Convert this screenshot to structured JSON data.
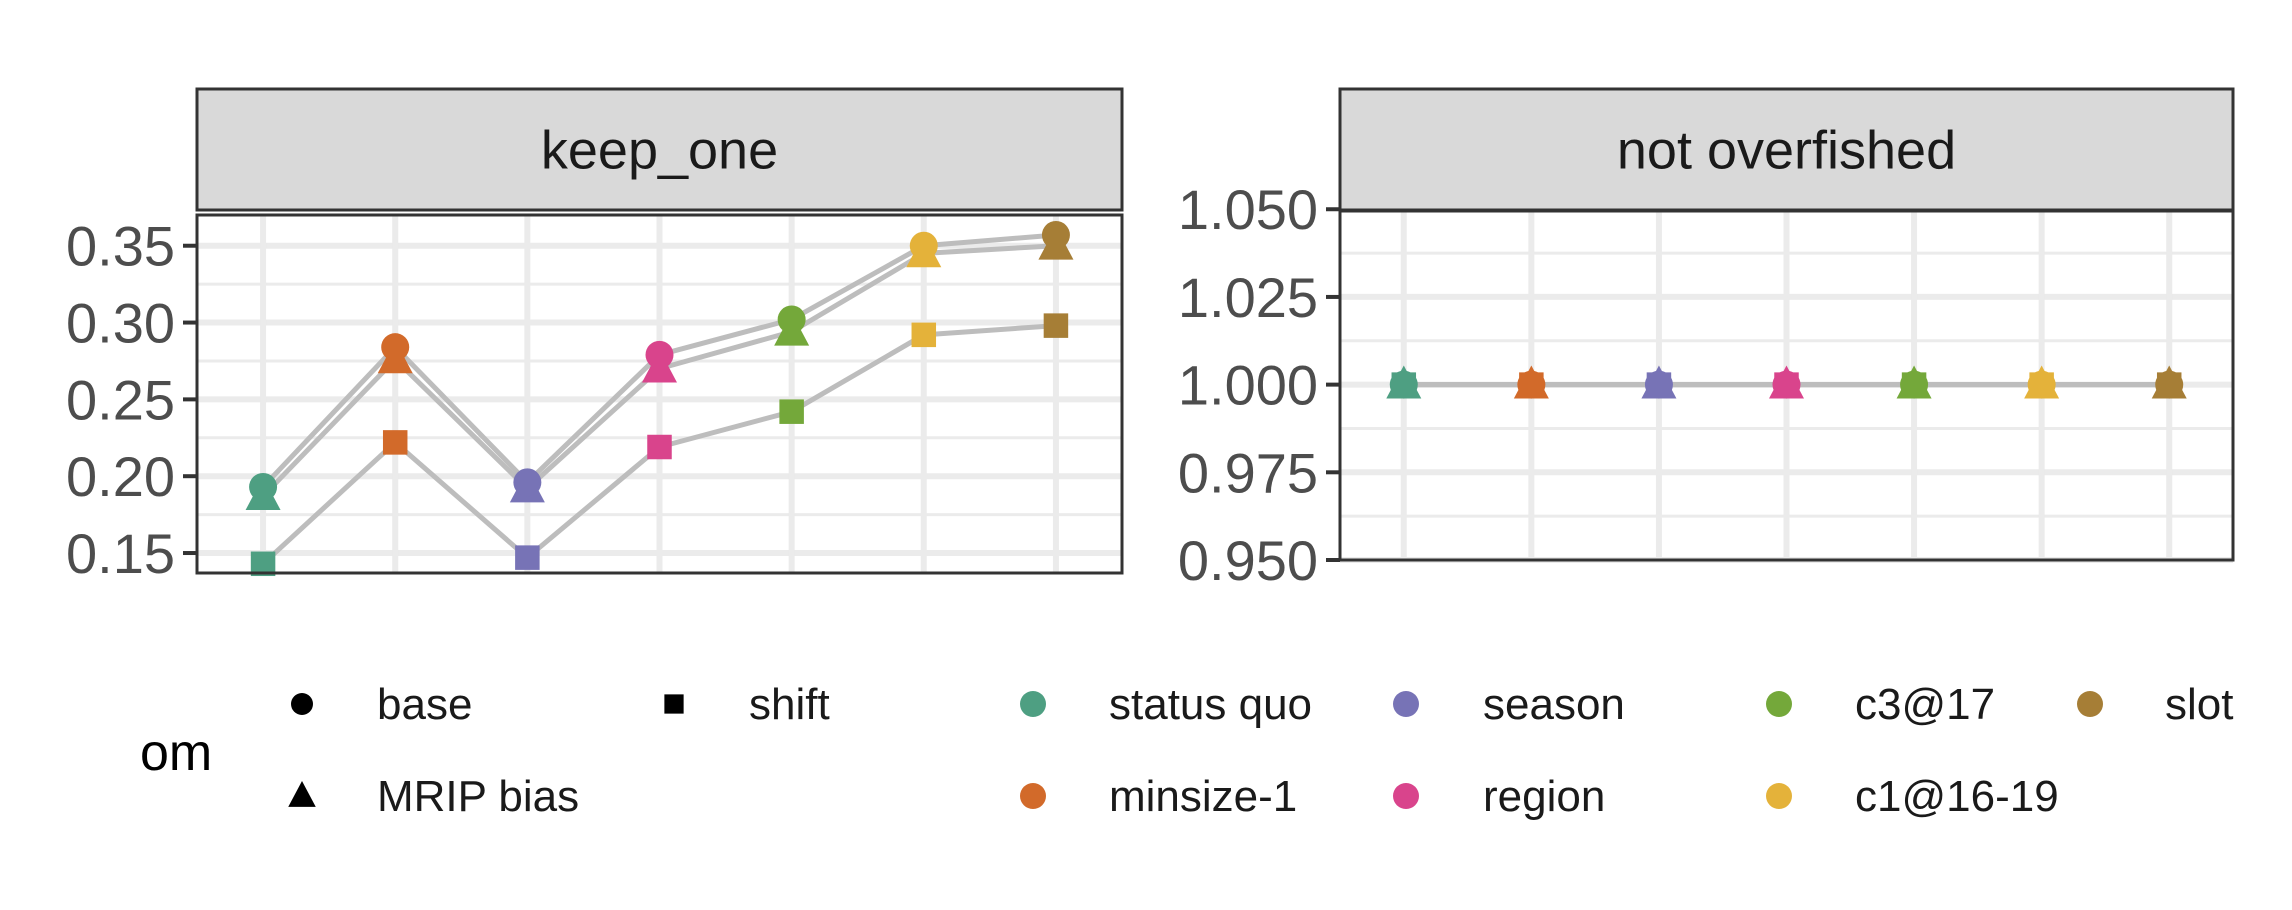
{
  "chart_data": {
    "type": "line",
    "categories": [
      "status quo",
      "minsize-1",
      "season",
      "region",
      "c3@17",
      "c1@16-19",
      "slot"
    ],
    "colors": {
      "status quo": "#4e9f82",
      "minsize-1": "#d26a2a",
      "season": "#7773b6",
      "region": "#d9448c",
      "c3@17": "#74a83a",
      "c1@16-19": "#e4b23a",
      "slot": "#a67e36"
    },
    "line_color": "#bdbdbd",
    "panel_strip_color": "#d9d9d9",
    "grid_color": "#ebebeb",
    "panels": [
      {
        "title": "keep_one",
        "ylim": [
          0.137,
          0.37
        ],
        "yticks": [
          0.15,
          0.2,
          0.25,
          0.3,
          0.35
        ],
        "ytick_labels": [
          "0.15",
          "0.20",
          "0.25",
          "0.30",
          "0.35"
        ],
        "series": [
          {
            "name": "base",
            "shape": "circle",
            "values": [
              0.193,
              0.284,
              0.196,
              0.279,
              0.302,
              0.35,
              0.357
            ]
          },
          {
            "name": "MRIP bias",
            "shape": "triangle",
            "values": [
              0.187,
              0.276,
              0.192,
              0.27,
              0.294,
              0.345,
              0.35
            ]
          },
          {
            "name": "shift",
            "shape": "square",
            "values": [
              0.143,
              0.222,
              0.147,
              0.219,
              0.242,
              0.292,
              0.298
            ]
          }
        ]
      },
      {
        "title": "not overfished",
        "ylim": [
          0.95,
          1.0495
        ],
        "yticks": [
          0.95,
          0.975,
          1.0,
          1.025,
          1.05
        ],
        "ytick_labels": [
          "0.950",
          "0.975",
          "1.000",
          "1.025",
          "1.050"
        ],
        "series": [
          {
            "name": "base",
            "shape": "circle",
            "values": [
              1.0,
              1.0,
              1.0,
              1.0,
              1.0,
              1.0,
              1.0
            ]
          },
          {
            "name": "MRIP bias",
            "shape": "triangle",
            "values": [
              1.0,
              1.0,
              1.0,
              1.0,
              1.0,
              1.0,
              1.0
            ]
          },
          {
            "name": "shift",
            "shape": "square",
            "values": [
              1.0,
              1.0,
              1.0,
              1.0,
              1.0,
              1.0,
              1.0
            ]
          }
        ]
      }
    ],
    "legend": {
      "title": "om",
      "shape_entries": [
        {
          "label": "base",
          "shape": "circle"
        },
        {
          "label": "shift",
          "shape": "square"
        },
        {
          "label": "MRIP bias",
          "shape": "triangle"
        }
      ],
      "color_entries": [
        "status quo",
        "season",
        "c3@17",
        "slot",
        "minsize-1",
        "region",
        "c1@16-19"
      ],
      "position": "bottom"
    }
  }
}
